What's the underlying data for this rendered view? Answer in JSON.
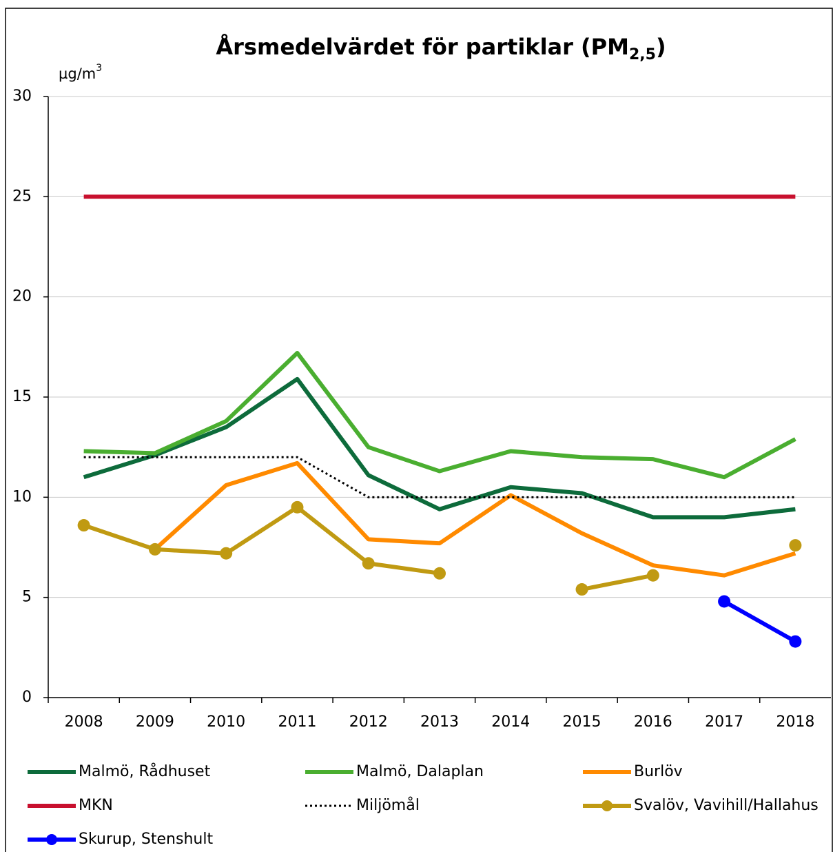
{
  "chart_data": {
    "type": "line",
    "title": [
      "Årsmedelvärdet för partiklar (PM",
      "2,5",
      ")"
    ],
    "y_unit": [
      "µg/m",
      "3"
    ],
    "categories": [
      "2008",
      "2009",
      "2010",
      "2011",
      "2012",
      "2013",
      "2014",
      "2015",
      "2016",
      "2017",
      "2018"
    ],
    "ylim": [
      0,
      30
    ],
    "yticks": [
      0,
      5,
      10,
      15,
      20,
      25,
      30
    ],
    "grid": true,
    "legend": "bottom",
    "series": [
      {
        "name": "Malmö, Rådhuset",
        "color": "#0d6b3b",
        "values": [
          11.0,
          12.1,
          13.5,
          15.9,
          11.1,
          9.4,
          10.5,
          10.2,
          9.0,
          9.0,
          9.4
        ]
      },
      {
        "name": "Malmö, Dalaplan",
        "color": "#4aae30",
        "values": [
          12.3,
          12.2,
          13.8,
          17.2,
          12.5,
          11.3,
          12.3,
          12.0,
          11.9,
          11.0,
          12.9
        ]
      },
      {
        "name": "Burlöv",
        "color": "#ff8a00",
        "values": [
          null,
          7.4,
          10.6,
          11.7,
          7.9,
          7.7,
          10.1,
          8.2,
          6.6,
          6.1,
          7.2
        ]
      },
      {
        "name": "MKN",
        "color": "#c8102e",
        "values": [
          25,
          25,
          25,
          25,
          25,
          25,
          25,
          25,
          25,
          25,
          25
        ]
      },
      {
        "name": "Miljömål",
        "color": "#000000",
        "dash": "dotted",
        "values": [
          12,
          12,
          12,
          12,
          10,
          10,
          10,
          10,
          10,
          10,
          10
        ]
      },
      {
        "name": "Svalöv, Vavihill/Hallahus",
        "color": "#c09a12",
        "markers": true,
        "values": [
          8.6,
          7.4,
          7.2,
          9.5,
          6.7,
          6.2,
          null,
          5.4,
          6.1,
          null,
          7.6
        ]
      },
      {
        "name": "Skurup, Stenshult",
        "color": "#0000ff",
        "markers": true,
        "values": [
          null,
          null,
          null,
          null,
          null,
          null,
          null,
          null,
          null,
          4.8,
          2.8
        ]
      }
    ]
  }
}
